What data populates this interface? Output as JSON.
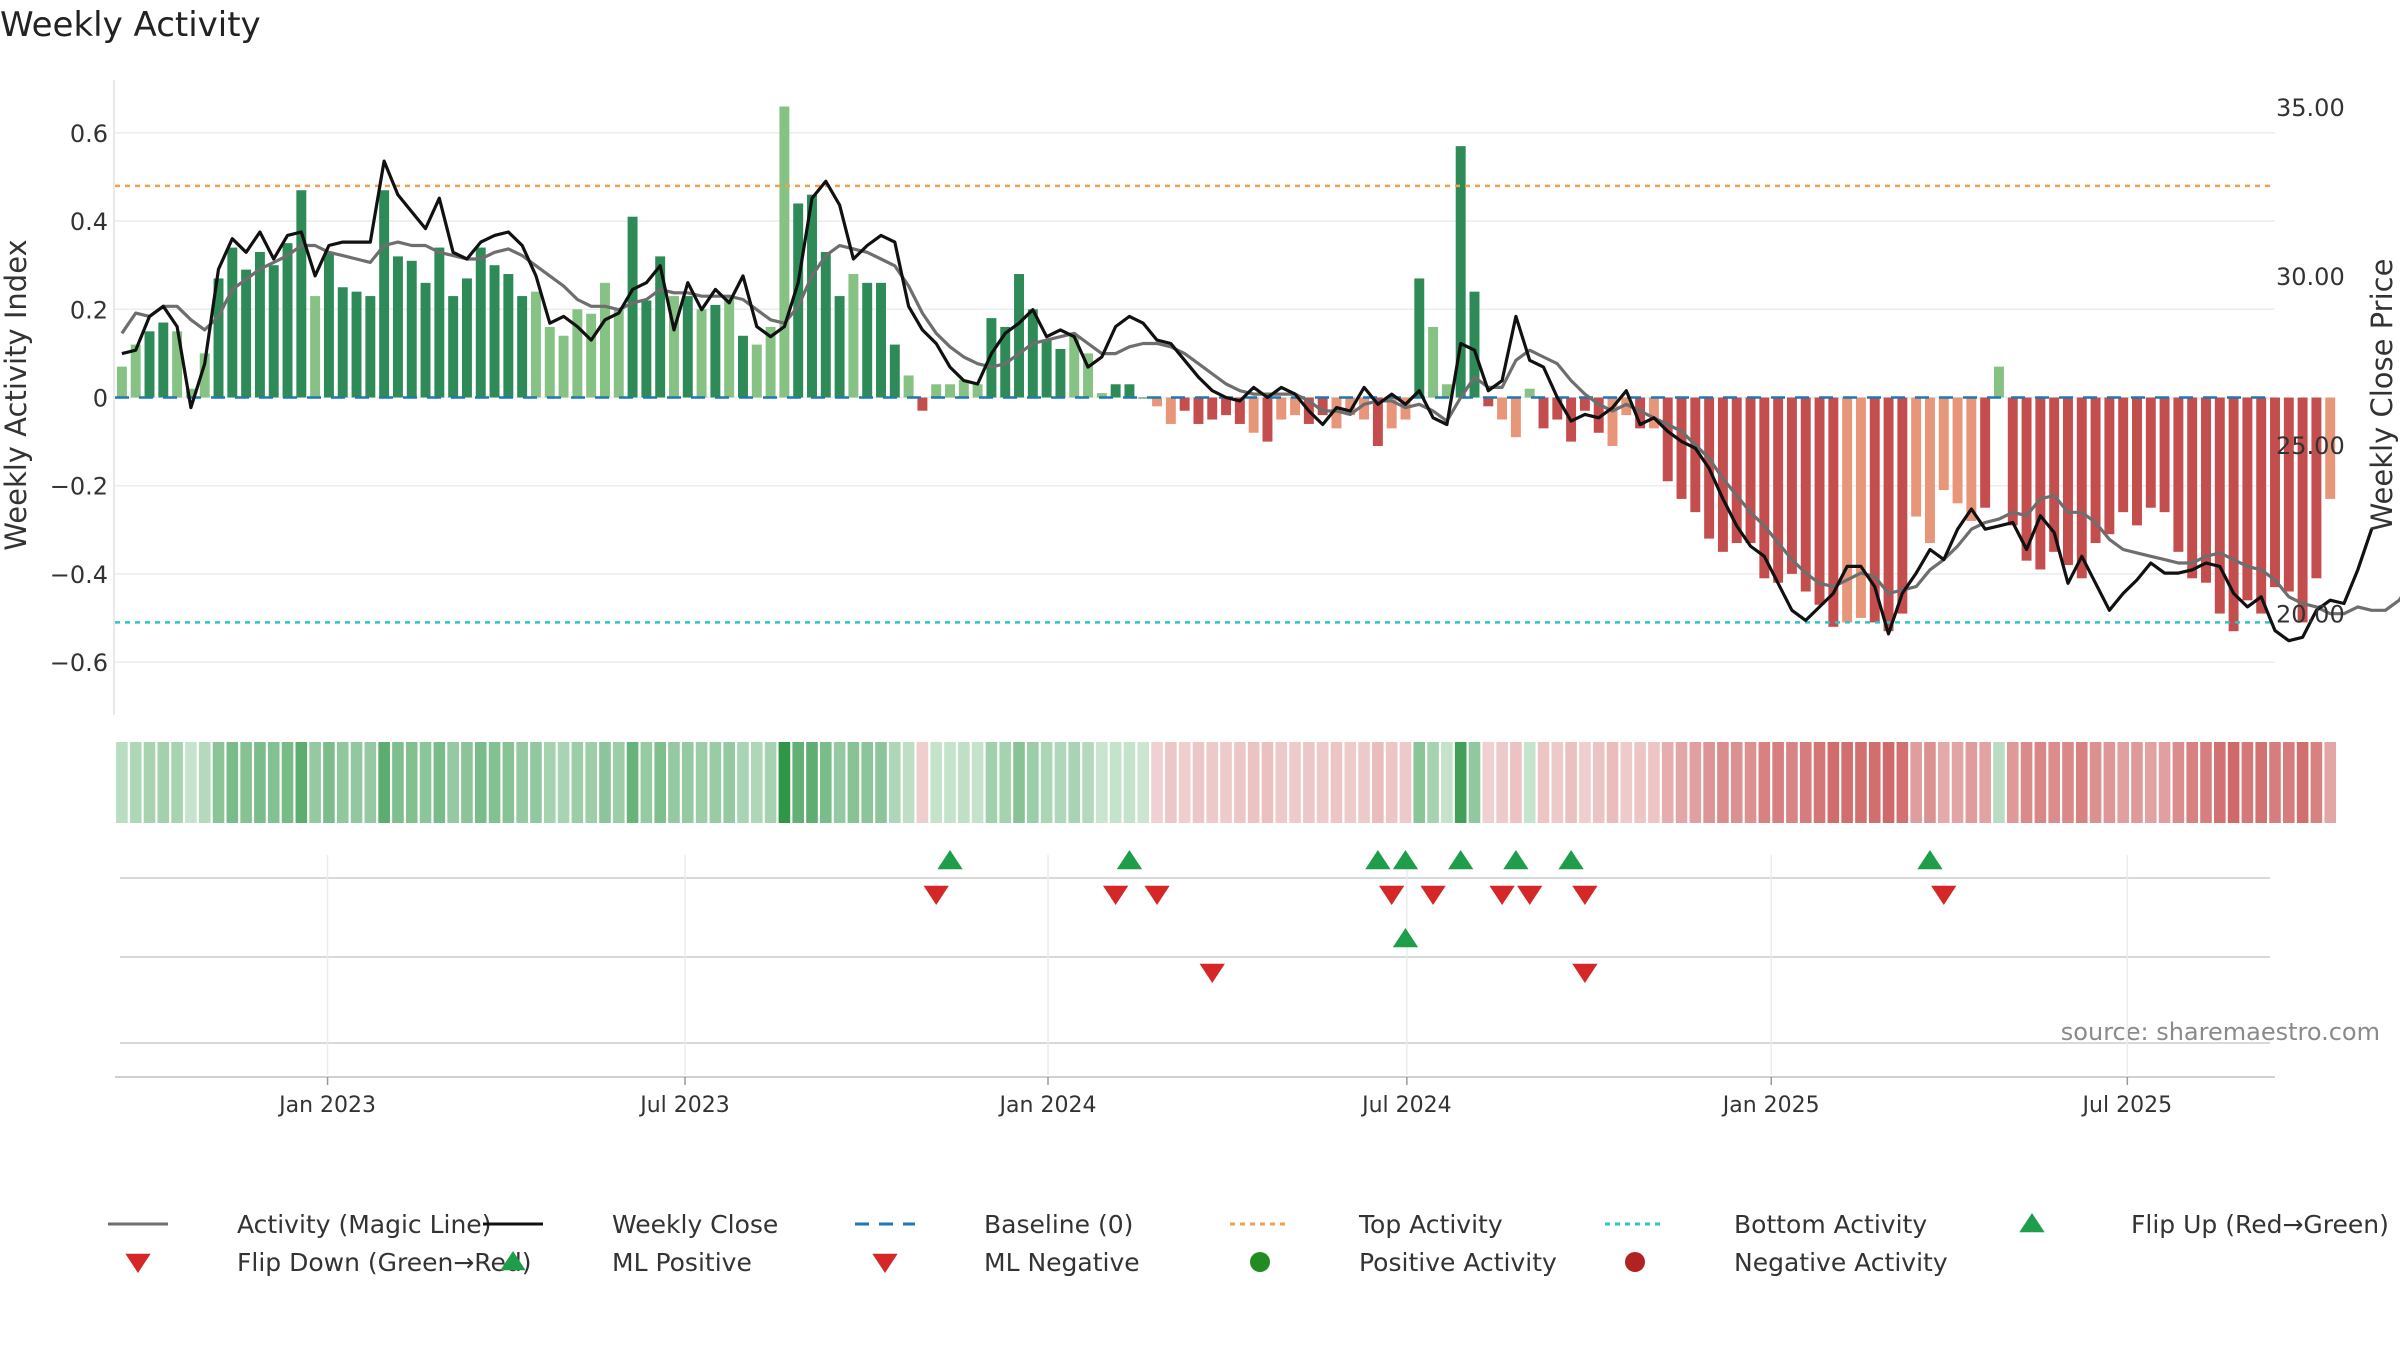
{
  "chart_data": {
    "type": "bar",
    "title": "Weekly Activity",
    "ylabel": "Weekly Activity Index",
    "y2label": "Weekly Close Price",
    "ylim": [
      -0.72,
      0.72
    ],
    "y2lim": [
      17,
      35.8
    ],
    "yticks": [
      0.6,
      0.4,
      0.2,
      0,
      -0.2,
      -0.4,
      -0.6
    ],
    "ytick_labels": [
      "0.6",
      "0.4",
      "0.2",
      "0",
      "−0.2",
      "−0.4",
      "−0.6"
    ],
    "y2ticks": [
      35,
      30,
      25,
      20
    ],
    "y2tick_labels": [
      "35.00",
      "30.00",
      "25.00",
      "20.00"
    ],
    "x_range_weeks": [
      0,
      156.5
    ],
    "xticks": [
      {
        "label": "Jan 2023",
        "week": 15.4
      },
      {
        "label": "Jul 2023",
        "week": 41.3
      },
      {
        "label": "Jan 2024",
        "week": 67.6
      },
      {
        "label": "Jul 2024",
        "week": 93.6
      },
      {
        "label": "Jan 2025",
        "week": 120
      },
      {
        "label": "Jul 2025",
        "week": 145.8
      }
    ],
    "top_activity": 0.48,
    "bottom_activity": -0.51,
    "baseline": 0,
    "activity_index": [
      0.07,
      0.12,
      0.15,
      0.17,
      0.15,
      0.02,
      0.1,
      0.27,
      0.34,
      0.29,
      0.33,
      0.3,
      0.35,
      0.47,
      0.23,
      0.33,
      0.25,
      0.24,
      0.23,
      0.47,
      0.32,
      0.31,
      0.26,
      0.34,
      0.23,
      0.27,
      0.34,
      0.3,
      0.28,
      0.23,
      0.24,
      0.16,
      0.14,
      0.2,
      0.19,
      0.26,
      0.2,
      0.41,
      0.22,
      0.32,
      0.23,
      0.23,
      0.2,
      0.21,
      0.23,
      0.14,
      0.12,
      0.16,
      0.66,
      0.44,
      0.46,
      0.33,
      0.23,
      0.28,
      0.26,
      0.26,
      0.12,
      0.05,
      -0.03,
      0.03,
      0.03,
      0.04,
      0.03,
      0.18,
      0.16,
      0.28,
      0.2,
      0.13,
      0.11,
      0.14,
      0.1,
      0.01,
      0.03,
      0.03,
      0,
      -0.02,
      -0.06,
      -0.03,
      -0.06,
      -0.05,
      -0.04,
      -0.06,
      -0.08,
      -0.1,
      -0.05,
      -0.04,
      -0.06,
      -0.04,
      -0.07,
      -0.04,
      -0.05,
      -0.11,
      -0.07,
      -0.05,
      0.27,
      0.16,
      0.03,
      0.57,
      0.24,
      -0.02,
      -0.05,
      -0.09,
      0.02,
      -0.07,
      -0.05,
      -0.1,
      -0.03,
      -0.08,
      -0.11,
      -0.04,
      -0.07,
      -0.07,
      -0.19,
      -0.23,
      -0.26,
      -0.32,
      -0.35,
      -0.33,
      -0.33,
      -0.41,
      -0.42,
      -0.4,
      -0.44,
      -0.47,
      -0.52,
      -0.51,
      -0.5,
      -0.51,
      -0.53,
      -0.49,
      -0.27,
      -0.33,
      -0.21,
      -0.24,
      -0.28,
      -0.25,
      0.07,
      -0.29,
      -0.37,
      -0.39,
      -0.35,
      -0.38,
      -0.41,
      -0.33,
      -0.31,
      -0.26,
      -0.29,
      -0.25,
      -0.26,
      -0.35,
      -0.41,
      -0.42,
      -0.49,
      -0.53,
      -0.46,
      -0.49,
      -0.43,
      -0.44,
      -0.51,
      -0.41,
      -0.23
    ],
    "weekly_close": [
      27.7,
      27.8,
      28.8,
      29.1,
      28.5,
      26.1,
      27.4,
      30.2,
      31.1,
      30.7,
      31.3,
      30.5,
      31.2,
      31.3,
      30.0,
      30.9,
      31.0,
      31.0,
      31.0,
      33.4,
      32.4,
      31.9,
      31.4,
      32.3,
      30.7,
      30.5,
      31.0,
      31.2,
      31.3,
      30.9,
      30.0,
      28.6,
      28.8,
      28.5,
      28.1,
      28.7,
      28.9,
      29.6,
      29.8,
      30.3,
      28.4,
      29.8,
      29.0,
      29.6,
      29.2,
      30.0,
      28.5,
      28.2,
      28.5,
      29.8,
      32.3,
      32.8,
      32.1,
      30.5,
      30.9,
      31.2,
      31.0,
      29.1,
      28.4,
      28.0,
      27.3,
      26.9,
      26.8,
      27.7,
      28.3,
      28.6,
      29.0,
      28.2,
      28.4,
      28.2,
      27.3,
      27.6,
      28.5,
      28.8,
      28.6,
      28.1,
      28.0,
      27.5,
      27.0,
      26.6,
      26.4,
      26.3,
      26.7,
      26.4,
      26.7,
      26.5,
      26.0,
      25.6,
      26.1,
      26.0,
      26.7,
      26.2,
      26.5,
      26.2,
      26.6,
      25.8,
      25.6,
      28.0,
      27.8,
      26.6,
      26.9,
      28.8,
      27.5,
      27.3,
      26.4,
      25.7,
      25.9,
      25.8,
      26.1,
      26.6,
      25.6,
      25.8,
      25.4,
      25.1,
      24.9,
      24.3,
      23.4,
      22.6,
      22.0,
      21.7,
      20.9,
      20.1,
      19.8,
      20.2,
      20.6,
      21.4,
      21.4,
      20.8,
      19.4,
      20.6,
      21.2,
      21.9,
      21.6,
      22.5,
      23.1,
      22.5,
      22.6,
      22.7,
      21.9,
      22.9,
      22.4,
      20.9,
      21.7,
      20.9,
      20.1,
      20.6,
      21.0,
      21.5,
      21.2,
      21.2,
      21.3,
      21.5,
      21.4,
      20.6,
      20.2,
      20.5,
      19.5,
      19.2,
      19.3,
      20.1,
      20.4,
      20.3,
      21.3,
      22.5
    ],
    "magic_line": [
      28.3,
      28.9,
      28.8,
      29.1,
      29.1,
      28.7,
      28.4,
      28.8,
      29.6,
      29.9,
      30.2,
      30.4,
      30.6,
      30.9,
      30.9,
      30.7,
      30.6,
      30.5,
      30.4,
      30.9,
      31.0,
      30.9,
      30.9,
      30.7,
      30.6,
      30.5,
      30.5,
      30.7,
      30.8,
      30.6,
      30.3,
      30.0,
      29.7,
      29.3,
      29.1,
      29.1,
      29.0,
      29.2,
      29.3,
      29.6,
      29.5,
      29.5,
      29.4,
      29.4,
      29.4,
      29.3,
      29.0,
      28.7,
      28.6,
      29.1,
      30.0,
      30.6,
      30.9,
      30.8,
      30.7,
      30.5,
      30.3,
      29.7,
      28.9,
      28.3,
      27.9,
      27.6,
      27.4,
      27.3,
      27.4,
      27.7,
      28.0,
      28.1,
      28.2,
      28.3,
      28.0,
      27.7,
      27.7,
      27.9,
      28.0,
      28.0,
      27.9,
      27.7,
      27.4,
      27.1,
      26.8,
      26.6,
      26.5,
      26.5,
      26.5,
      26.5,
      26.3,
      26.0,
      26.0,
      25.9,
      26.2,
      26.3,
      26.3,
      26.1,
      26.2,
      26.0,
      25.7,
      26.4,
      27.0,
      26.7,
      26.7,
      27.5,
      27.8,
      27.6,
      27.4,
      26.9,
      26.5,
      26.2,
      26.0,
      26.2,
      26.0,
      25.8,
      25.6,
      25.4,
      25.0,
      24.6,
      24.0,
      23.5,
      23.0,
      22.6,
      22.1,
      21.6,
      21.2,
      20.9,
      20.8,
      21.0,
      21.2,
      21.1,
      20.6,
      20.7,
      20.8,
      21.3,
      21.6,
      22.0,
      22.5,
      22.7,
      22.8,
      23.0,
      22.9,
      23.4,
      23.5,
      23.0,
      23.0,
      22.7,
      22.2,
      21.9,
      21.8,
      21.7,
      21.6,
      21.5,
      21.5,
      21.7,
      21.8,
      21.6,
      21.4,
      21.3,
      21.0,
      20.5,
      20.3,
      20.2,
      20.0,
      20.0,
      20.2,
      20.1,
      20.1,
      20.4,
      21.0
    ],
    "flip_events": {
      "row1_up": [
        60,
        73,
        91,
        93,
        97,
        101,
        105,
        131
      ],
      "row1_down": [
        59,
        72,
        75,
        92,
        95,
        100,
        102,
        106,
        132
      ],
      "row2_up": [
        93
      ],
      "row2_down": [
        79,
        106
      ]
    },
    "colors": {
      "green_dark": "#2e8b57",
      "green_light": "#86c283",
      "red_dark": "#c44e4e",
      "red_light": "#e8967a",
      "close": "#111111",
      "magic": "#6e6e6e",
      "baseline": "#1f77b4",
      "top": "#f0a050",
      "bottom": "#2ec4c4",
      "flip_up": "#1e9e4a",
      "flip_down": "#d62728"
    },
    "legend": [
      "Activity (Magic Line)",
      "Weekly Close",
      "Baseline (0)",
      "Top Activity",
      "Bottom Activity",
      "Flip Up (Red→Green)",
      "Flip Down (Green→Red)",
      "ML Positive",
      "ML Negative",
      "Positive Activity",
      "Negative Activity"
    ],
    "source": "source: sharemaestro.com"
  }
}
